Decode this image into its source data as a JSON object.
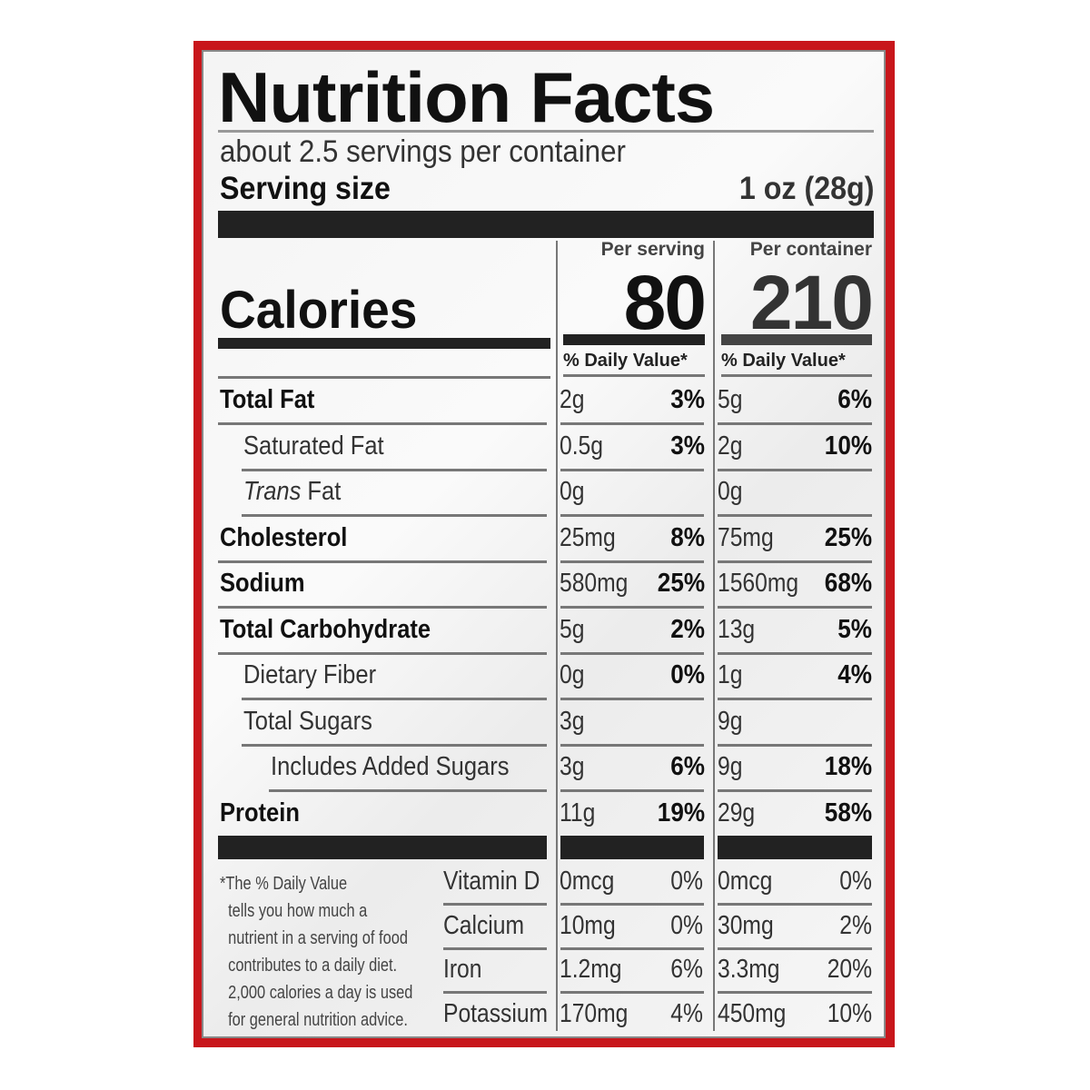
{
  "title": "Nutrition Facts",
  "servings_per_container": "about 2.5 servings per container",
  "serving_size_label": "Serving size",
  "serving_size_value": "1 oz (28g)",
  "calories_label": "Calories",
  "columns": [
    {
      "header": "Per serving",
      "calories": "80",
      "dv_header": "% Daily Value*"
    },
    {
      "header": "Per container",
      "calories": "210",
      "dv_header": "% Daily Value*"
    }
  ],
  "nutrients": [
    {
      "label": "Total Fat",
      "level": 0,
      "bold": true,
      "serving": [
        "2g",
        "3%"
      ],
      "container": [
        "5g",
        "6%"
      ]
    },
    {
      "label": "Saturated Fat",
      "level": 1,
      "bold": false,
      "serving": [
        "0.5g",
        "3%"
      ],
      "container": [
        "2g",
        "10%"
      ]
    },
    {
      "label": "Trans Fat",
      "level": 1,
      "bold": false,
      "italic_prefix": "Trans",
      "serving": [
        "0g",
        ""
      ],
      "container": [
        "0g",
        ""
      ]
    },
    {
      "label": "Cholesterol",
      "level": 0,
      "bold": true,
      "serving": [
        "25mg",
        "8%"
      ],
      "container": [
        "75mg",
        "25%"
      ]
    },
    {
      "label": "Sodium",
      "level": 0,
      "bold": true,
      "serving": [
        "580mg",
        "25%"
      ],
      "container": [
        "1560mg",
        "68%"
      ]
    },
    {
      "label": "Total Carbohydrate",
      "level": 0,
      "bold": true,
      "serving": [
        "5g",
        "2%"
      ],
      "container": [
        "13g",
        "5%"
      ]
    },
    {
      "label": "Dietary Fiber",
      "level": 1,
      "bold": false,
      "serving": [
        "0g",
        "0%"
      ],
      "container": [
        "1g",
        "4%"
      ]
    },
    {
      "label": "Total Sugars",
      "level": 1,
      "bold": false,
      "serving": [
        "3g",
        ""
      ],
      "container": [
        "9g",
        ""
      ]
    },
    {
      "label": "Includes Added Sugars",
      "level": 2,
      "bold": false,
      "serving": [
        "3g",
        "6%"
      ],
      "container": [
        "9g",
        "18%"
      ]
    },
    {
      "label": "Protein",
      "level": 0,
      "bold": true,
      "serving": [
        "11g",
        "19%"
      ],
      "container": [
        "29g",
        "58%"
      ]
    }
  ],
  "vitamins": [
    {
      "label": "Vitamin D",
      "serving": [
        "0mcg",
        "0%"
      ],
      "container": [
        "0mcg",
        "0%"
      ]
    },
    {
      "label": "Calcium",
      "serving": [
        "10mg",
        "0%"
      ],
      "container": [
        "30mg",
        "2%"
      ]
    },
    {
      "label": "Iron",
      "serving": [
        "1.2mg",
        "6%"
      ],
      "container": [
        "3.3mg",
        "20%"
      ]
    },
    {
      "label": "Potassium",
      "serving": [
        "170mg",
        "4%"
      ],
      "container": [
        "450mg",
        "10%"
      ]
    }
  ],
  "footnote": "*The % Daily Value\n  tells you how much a\n  nutrient in a serving of food\n  contributes to a daily diet.\n  2,000 calories a day is used\n  for general nutrition advice.",
  "colors": {
    "frame": "#c8161b",
    "text": "#111111",
    "rule": "#222222"
  }
}
